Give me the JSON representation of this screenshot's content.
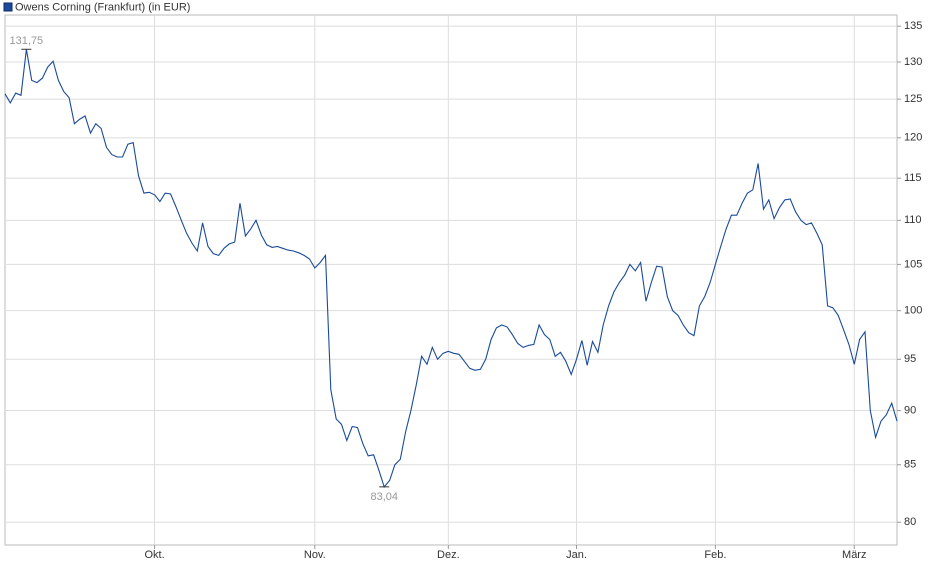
{
  "chart_data": {
    "type": "line",
    "log_scale": true,
    "grid": true,
    "legend": "top-left",
    "series": [
      {
        "name": "Owens Corning (Frankfurt) (in EUR)",
        "color": "#1a4a9a",
        "values": [
          125.7,
          124.5,
          125.8,
          125.5,
          131.75,
          127.5,
          127.2,
          127.8,
          129.3,
          130.1,
          127.5,
          126.0,
          125.2,
          121.8,
          122.4,
          122.8,
          120.6,
          121.8,
          121.2,
          118.8,
          117.9,
          117.6,
          117.6,
          119.2,
          119.4,
          115.3,
          113.2,
          113.3,
          113.0,
          112.2,
          113.2,
          113.1,
          111.6,
          110.0,
          108.5,
          107.4,
          106.5,
          109.7,
          107.0,
          106.2,
          106.0,
          106.8,
          107.3,
          107.5,
          112.0,
          108.2,
          109.0,
          110.0,
          108.3,
          107.2,
          106.9,
          107.0,
          106.8,
          106.6,
          106.5,
          106.3,
          106.0,
          105.6,
          104.6,
          105.2,
          106.0,
          92.0,
          89.2,
          88.7,
          87.2,
          88.5,
          88.4,
          86.9,
          85.8,
          85.9,
          84.5,
          83.04,
          83.6,
          85.0,
          85.5,
          88.0,
          90.0,
          92.5,
          95.3,
          94.5,
          96.2,
          95.0,
          95.6,
          95.8,
          95.6,
          95.5,
          94.8,
          94.1,
          93.9,
          94.0,
          95.0,
          97.0,
          98.2,
          98.5,
          98.3,
          97.5,
          96.6,
          96.2,
          96.4,
          96.5,
          98.5,
          97.5,
          97.0,
          95.3,
          95.7,
          94.8,
          93.5,
          95.0,
          96.9,
          94.4,
          96.8,
          95.7,
          98.5,
          100.5,
          102.0,
          103.0,
          103.8,
          105.0,
          104.3,
          105.2,
          101.0,
          103.0,
          104.8,
          104.7,
          101.5,
          100.0,
          99.5,
          98.5,
          97.7,
          97.4,
          100.5,
          101.5,
          103.0,
          105.0,
          107.0,
          109.0,
          110.6,
          110.6,
          112.0,
          113.2,
          113.6,
          116.8,
          111.3,
          112.4,
          110.2,
          111.5,
          112.4,
          112.5,
          111.0,
          110.0,
          109.5,
          109.7,
          108.5,
          107.2,
          100.5,
          100.3,
          99.5,
          98.0,
          96.5,
          94.5,
          97.0,
          97.8,
          90.0,
          87.5,
          89.0,
          89.6,
          90.7,
          89.0
        ],
        "value_labels": [
          null,
          null,
          null,
          null,
          "131,75",
          null,
          null,
          null,
          null,
          null,
          null,
          null,
          null,
          null,
          null,
          null,
          null,
          null,
          null,
          null,
          null,
          null,
          null,
          null,
          null,
          null,
          null,
          null,
          null,
          null,
          null,
          null,
          null,
          null,
          null,
          null,
          null,
          null,
          null,
          null,
          null,
          null,
          null,
          null,
          null,
          null,
          null,
          null,
          null,
          null,
          null,
          null,
          null,
          null,
          null,
          null,
          null,
          null,
          null,
          null,
          null,
          null,
          null,
          null,
          null,
          null,
          null,
          null,
          null,
          null,
          null,
          "83,04",
          null,
          null,
          null,
          null,
          null,
          null,
          null,
          null,
          null,
          null,
          null,
          null,
          null,
          null,
          null,
          null,
          null,
          null,
          null,
          null,
          null,
          null,
          null,
          null,
          null,
          null,
          null,
          null,
          null,
          null,
          null,
          null,
          null,
          null,
          null,
          null,
          null,
          null,
          null,
          null,
          null,
          null,
          null,
          null,
          null,
          null,
          null,
          null,
          null,
          null,
          null,
          null,
          null,
          null,
          null,
          null,
          null,
          null,
          null,
          null,
          null,
          null,
          null,
          null,
          null,
          null,
          null,
          null,
          null,
          null,
          null,
          null,
          null,
          null,
          null,
          null,
          null,
          null,
          null,
          null,
          null,
          null,
          null,
          null,
          null,
          null,
          null,
          null,
          null,
          null,
          null,
          null,
          null,
          null,
          null,
          null
        ]
      }
    ],
    "categories": [
      null,
      null,
      null,
      null,
      null,
      null,
      null,
      null,
      null,
      null,
      null,
      null,
      null,
      null,
      null,
      null,
      null,
      null,
      null,
      null,
      null,
      null,
      null,
      null,
      null,
      null,
      null,
      null,
      "Okt.",
      null,
      null,
      null,
      null,
      null,
      null,
      null,
      null,
      null,
      null,
      null,
      null,
      null,
      null,
      null,
      null,
      null,
      null,
      null,
      null,
      null,
      null,
      null,
      null,
      null,
      null,
      null,
      null,
      null,
      "Nov.",
      null,
      null,
      null,
      null,
      null,
      null,
      null,
      null,
      null,
      null,
      null,
      null,
      null,
      null,
      null,
      null,
      null,
      null,
      null,
      null,
      null,
      null,
      null,
      null,
      "Dez.",
      null,
      null,
      null,
      null,
      null,
      null,
      null,
      null,
      null,
      null,
      null,
      null,
      null,
      null,
      null,
      null,
      null,
      null,
      null,
      null,
      null,
      null,
      null,
      "Jan.",
      null,
      null,
      null,
      null,
      null,
      null,
      null,
      null,
      null,
      null,
      null,
      null,
      null,
      null,
      null,
      null,
      null,
      null,
      null,
      null,
      null,
      null,
      null,
      null,
      null,
      "Feb.",
      null,
      null,
      null,
      null,
      null,
      null,
      null,
      null,
      null,
      null,
      null,
      null,
      null,
      null,
      null,
      null,
      null,
      null,
      null,
      null,
      null,
      null,
      null,
      null,
      null,
      "März",
      null,
      null,
      null,
      null,
      null,
      null,
      null,
      null
    ],
    "ylim": [
      78.1,
      136.6
    ],
    "yticks": [
      80,
      85,
      90,
      95,
      100,
      105,
      110,
      115,
      120,
      125,
      130,
      135
    ]
  }
}
